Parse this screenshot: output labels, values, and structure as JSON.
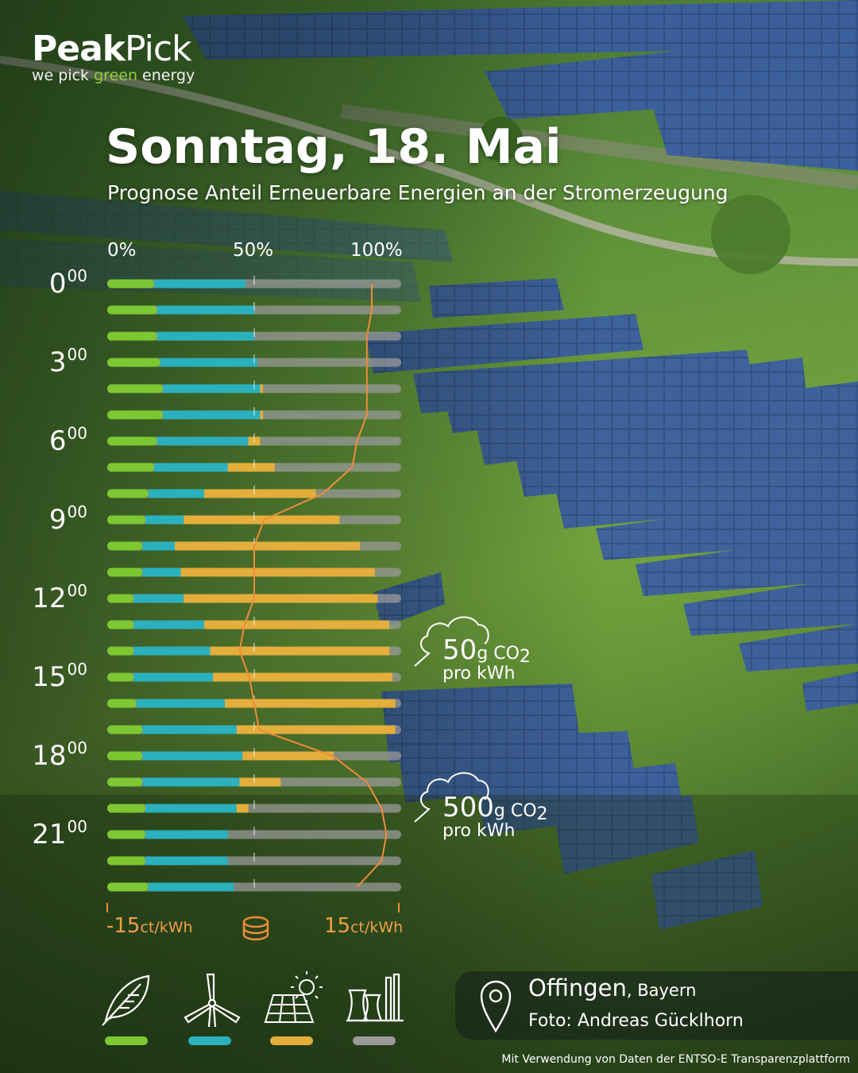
{
  "brand": {
    "name_bold": "Peak",
    "name_regular": "Pick",
    "tagline_pre": "we pick ",
    "tagline_green": "green",
    "tagline_post": " energy"
  },
  "title": "Sonntag, 18. Mai",
  "subtitle": "Prognose Anteil Erneuerbare Energien an der Stromerzeugung",
  "colors": {
    "biomass": "#7dc832",
    "wind": "#2bb0bd",
    "solar": "#e3ae3c",
    "fossil": "#9a9a9a",
    "price_line": "#f08c3a",
    "text": "#ffffff"
  },
  "chart_data": {
    "type": "bar",
    "orientation": "horizontal",
    "stacked": true,
    "x_axis_ticks": [
      "0%",
      "50%",
      "100%"
    ],
    "xlim": [
      0,
      100
    ],
    "categories": [
      "00:00",
      "01:00",
      "02:00",
      "03:00",
      "04:00",
      "05:00",
      "06:00",
      "07:00",
      "08:00",
      "09:00",
      "10:00",
      "11:00",
      "12:00",
      "13:00",
      "14:00",
      "15:00",
      "16:00",
      "17:00",
      "18:00",
      "19:00",
      "20:00",
      "21:00",
      "22:00",
      "23:00"
    ],
    "hour_labels": [
      {
        "hour": "0",
        "minutes": "00",
        "row": 0
      },
      {
        "hour": "3",
        "minutes": "00",
        "row": 3
      },
      {
        "hour": "6",
        "minutes": "00",
        "row": 6
      },
      {
        "hour": "9",
        "minutes": "00",
        "row": 9
      },
      {
        "hour": "12",
        "minutes": "00",
        "row": 12
      },
      {
        "hour": "15",
        "minutes": "00",
        "row": 15
      },
      {
        "hour": "18",
        "minutes": "00",
        "row": 18
      },
      {
        "hour": "21",
        "minutes": "00",
        "row": 21
      }
    ],
    "series": [
      {
        "key": "biomass",
        "values": [
          16,
          17,
          17,
          18,
          19,
          19,
          17,
          16,
          14,
          13,
          12,
          12,
          9,
          9,
          9,
          9,
          10,
          12,
          12,
          12,
          13,
          13,
          13,
          14
        ]
      },
      {
        "key": "wind",
        "values": [
          31,
          33,
          33,
          33,
          33,
          33,
          31,
          25,
          19,
          13,
          11,
          13,
          17,
          24,
          26,
          27,
          30,
          32,
          34,
          33,
          31,
          28,
          28,
          29
        ]
      },
      {
        "key": "solar",
        "values": [
          0,
          0,
          0,
          0,
          1,
          1,
          4,
          16,
          38,
          53,
          63,
          66,
          66,
          63,
          61,
          61,
          58,
          54,
          31,
          14,
          4,
          0,
          0,
          0
        ]
      }
    ],
    "price_line": {
      "values_ct_per_kwh": [
        12,
        12,
        11.5,
        11.5,
        11.5,
        11.5,
        10.5,
        10,
        7,
        1,
        0,
        0,
        0,
        -1,
        -1.5,
        -0.5,
        0,
        0.5,
        8,
        11.5,
        13,
        13.5,
        13,
        10.5
      ],
      "range": [
        -15,
        15
      ],
      "label_min": "-15",
      "label_max": "15",
      "unit": "ct/kWh",
      "icon": "coins-icon"
    },
    "annotations": [
      {
        "value": "50",
        "unit": "g CO",
        "sub": "2",
        "per": "pro kWh",
        "near_row": 14
      },
      {
        "value": "500",
        "unit": "g CO",
        "sub": "2",
        "per": "pro kWh",
        "near_row": 21
      }
    ]
  },
  "legend": [
    {
      "key": "biomass",
      "icon": "leaf-icon"
    },
    {
      "key": "wind",
      "icon": "wind-turbine-icon"
    },
    {
      "key": "solar",
      "icon": "solar-panel-icon"
    },
    {
      "key": "fossil",
      "icon": "power-plant-icon"
    }
  ],
  "location": {
    "city": "Offingen",
    "region": ", Bayern",
    "photo_credit": "Foto: Andreas Gücklhorn",
    "icon": "location-pin-icon"
  },
  "footer": "Mit Verwendung von Daten der ENTSO-E Transparenzplattform"
}
